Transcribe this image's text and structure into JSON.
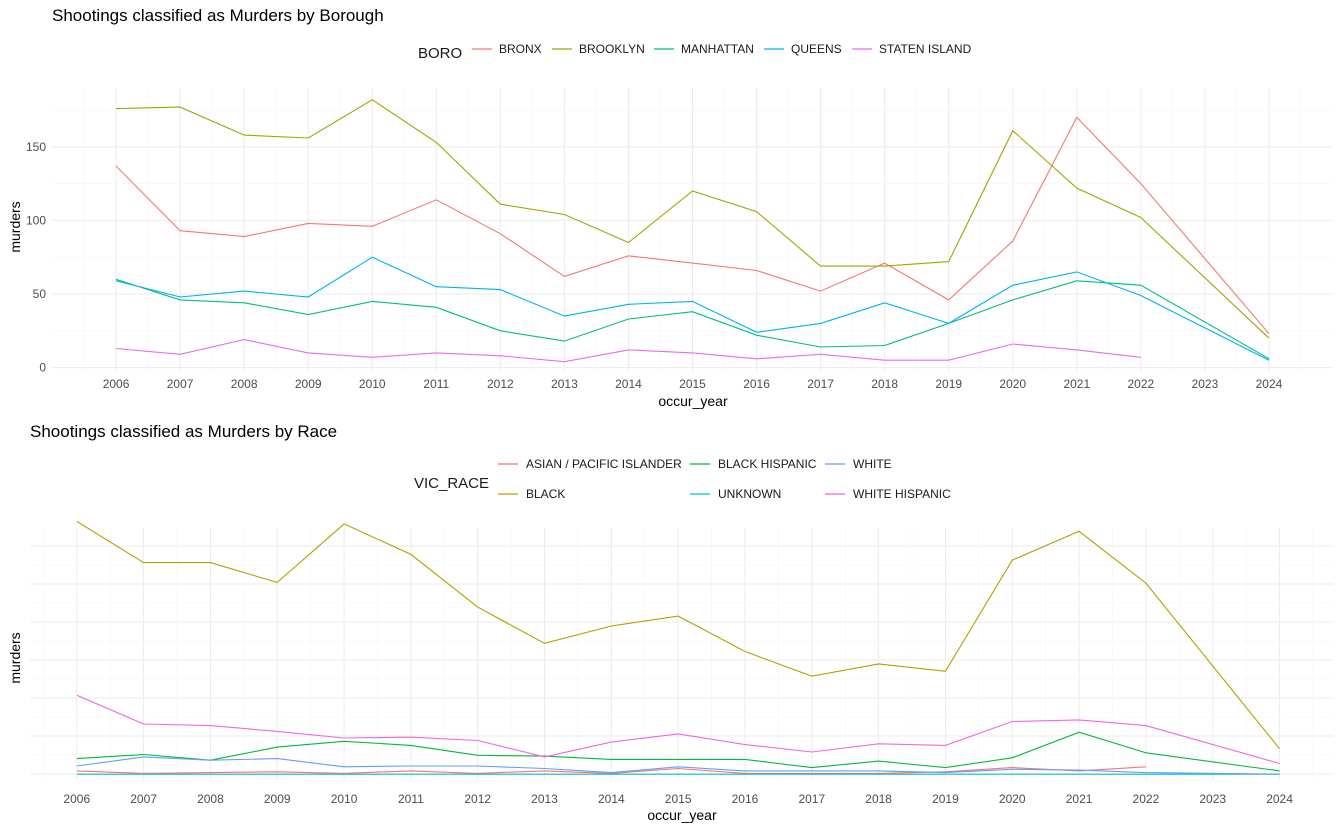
{
  "colors": {
    "BRONX": "#F8766D",
    "BROOKLYN": "#A3A500",
    "MANHATTAN": "#00BF7D",
    "QUEENS": "#00B0F6",
    "STATEN ISLAND": "#E76BF3",
    "ASIAN / PACIFIC ISLANDER": "#F8766D",
    "BLACK": "#B79F00",
    "BLACK HISPANIC": "#00BA38",
    "UNKNOWN": "#00BFC4",
    "WHITE": "#619CFF",
    "WHITE HISPANIC": "#F564E3"
  },
  "chart_data": [
    {
      "type": "line",
      "title": "Shootings classified as Murders by Borough",
      "xlabel": "occur_year",
      "ylabel": "murders",
      "legend_title": "BORO",
      "legend_position": "top",
      "grid": true,
      "xlim": [
        2005,
        2025
      ],
      "ylim": [
        -3,
        190
      ],
      "x_ticks": [
        2006,
        2007,
        2008,
        2009,
        2010,
        2011,
        2012,
        2013,
        2014,
        2015,
        2016,
        2017,
        2018,
        2019,
        2020,
        2021,
        2022,
        2023,
        2024
      ],
      "y_ticks": [
        0,
        50,
        100,
        150
      ],
      "series": [
        {
          "name": "BRONX",
          "x": [
            2006,
            2007,
            2008,
            2009,
            2010,
            2011,
            2012,
            2013,
            2014,
            2015,
            2016,
            2017,
            2018,
            2019,
            2020,
            2021,
            2022,
            2024
          ],
          "y": [
            137,
            93,
            89,
            98,
            96,
            114,
            91,
            62,
            76,
            71,
            66,
            52,
            71,
            46,
            86,
            170,
            125,
            23
          ]
        },
        {
          "name": "BROOKLYN",
          "x": [
            2006,
            2007,
            2008,
            2009,
            2010,
            2011,
            2012,
            2013,
            2014,
            2015,
            2016,
            2017,
            2018,
            2019,
            2020,
            2021,
            2022,
            2024
          ],
          "y": [
            176,
            177,
            158,
            156,
            182,
            153,
            111,
            104,
            85,
            120,
            106,
            69,
            69,
            72,
            161,
            122,
            102,
            20
          ]
        },
        {
          "name": "MANHATTAN",
          "x": [
            2006,
            2007,
            2008,
            2009,
            2010,
            2011,
            2012,
            2013,
            2014,
            2015,
            2016,
            2017,
            2018,
            2019,
            2020,
            2021,
            2022,
            2024
          ],
          "y": [
            60,
            46,
            44,
            36,
            45,
            41,
            25,
            18,
            33,
            38,
            22,
            14,
            15,
            30,
            46,
            59,
            56,
            6
          ]
        },
        {
          "name": "QUEENS",
          "x": [
            2006,
            2007,
            2008,
            2009,
            2010,
            2011,
            2012,
            2013,
            2014,
            2015,
            2016,
            2017,
            2018,
            2019,
            2020,
            2021,
            2022,
            2024
          ],
          "y": [
            59,
            48,
            52,
            48,
            75,
            55,
            53,
            35,
            43,
            45,
            24,
            30,
            44,
            30,
            56,
            65,
            49,
            5
          ]
        },
        {
          "name": "STATEN ISLAND",
          "x": [
            2006,
            2007,
            2008,
            2009,
            2010,
            2011,
            2012,
            2013,
            2014,
            2015,
            2016,
            2017,
            2018,
            2019,
            2020,
            2021,
            2022
          ],
          "y": [
            13,
            9,
            19,
            10,
            7,
            10,
            8,
            4,
            12,
            10,
            6,
            9,
            5,
            5,
            16,
            12,
            7
          ]
        }
      ]
    },
    {
      "type": "line",
      "title": "Shootings classified as Murders by Race",
      "xlabel": "occur_year",
      "ylabel": "murders",
      "legend_title": "VIC_RACE",
      "legend_position": "top",
      "grid": true,
      "xlim": [
        2005.3,
        2024.8
      ],
      "ylim": [
        -6,
        300
      ],
      "x_ticks": [
        2006,
        2007,
        2008,
        2009,
        2010,
        2011,
        2012,
        2013,
        2014,
        2015,
        2016,
        2017,
        2018,
        2019,
        2020,
        2021,
        2022,
        2023,
        2024
      ],
      "y_ticks": [],
      "series": [
        {
          "name": "ASIAN / PACIFIC ISLANDER",
          "x": [
            2006,
            2007,
            2008,
            2009,
            2010,
            2011,
            2012,
            2013,
            2014,
            2015,
            2016,
            2017,
            2018,
            2019,
            2020,
            2021,
            2022
          ],
          "y": [
            5,
            2,
            3,
            4,
            2,
            5,
            2,
            5,
            2,
            8,
            2,
            2,
            2,
            4,
            9,
            5,
            10
          ]
        },
        {
          "name": "BLACK",
          "x": [
            2006,
            2007,
            2008,
            2009,
            2010,
            2011,
            2012,
            2013,
            2014,
            2015,
            2016,
            2017,
            2018,
            2019,
            2020,
            2021,
            2022,
            2024
          ],
          "y": [
            308,
            258,
            258,
            234,
            305,
            268,
            204,
            160,
            181,
            193,
            150,
            120,
            135,
            126,
            261,
            296,
            233,
            32
          ]
        },
        {
          "name": "BLACK HISPANIC",
          "x": [
            2006,
            2007,
            2008,
            2009,
            2010,
            2011,
            2012,
            2013,
            2014,
            2015,
            2016,
            2017,
            2018,
            2019,
            2020,
            2021,
            2022,
            2024
          ],
          "y": [
            20,
            25,
            18,
            34,
            41,
            36,
            24,
            23,
            19,
            19,
            19,
            9,
            17,
            9,
            21,
            52,
            27,
            5
          ]
        },
        {
          "name": "UNKNOWN",
          "x": [
            2006,
            2007,
            2008,
            2009,
            2010,
            2011,
            2012,
            2013,
            2014,
            2015,
            2016,
            2017,
            2018,
            2019,
            2020,
            2021,
            2022,
            2024
          ],
          "y": [
            1,
            1,
            1,
            1,
            1,
            1,
            1,
            1,
            1,
            1,
            1,
            1,
            1,
            1,
            1,
            1,
            1,
            1
          ]
        },
        {
          "name": "WHITE",
          "x": [
            2006,
            2007,
            2008,
            2009,
            2010,
            2011,
            2012,
            2013,
            2014,
            2015,
            2016,
            2017,
            2018,
            2019,
            2020,
            2021,
            2022,
            2024
          ],
          "y": [
            11,
            22,
            18,
            20,
            10,
            11,
            11,
            8,
            3,
            10,
            5,
            5,
            5,
            3,
            7,
            6,
            3,
            1
          ]
        },
        {
          "name": "WHITE HISPANIC",
          "x": [
            2006,
            2007,
            2008,
            2009,
            2010,
            2011,
            2012,
            2013,
            2014,
            2015,
            2016,
            2017,
            2018,
            2019,
            2020,
            2021,
            2022,
            2024
          ],
          "y": [
            97,
            62,
            60,
            53,
            45,
            46,
            42,
            22,
            40,
            50,
            37,
            28,
            38,
            36,
            65,
            67,
            60,
            14
          ]
        }
      ]
    }
  ]
}
